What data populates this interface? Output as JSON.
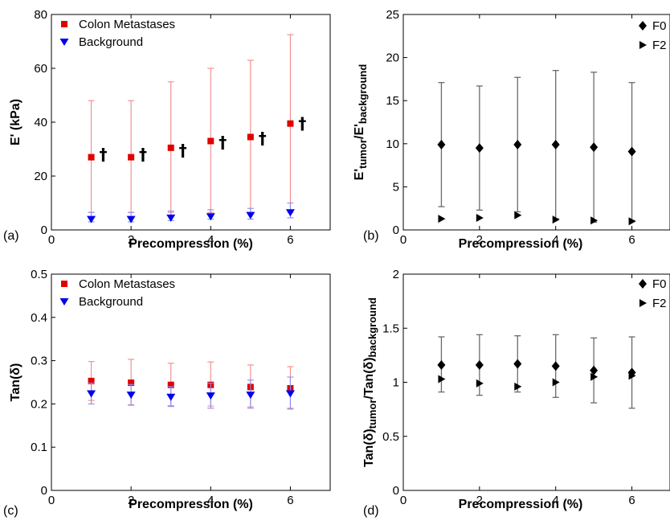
{
  "chart_data": [
    {
      "panel": "(a)",
      "type": "scatter",
      "xlabel": "Precompression (%)",
      "ylabel": "E' (kPa)",
      "xlim": [
        0,
        7
      ],
      "ylim": [
        0,
        80
      ],
      "xticks": [
        0,
        2,
        4,
        6
      ],
      "yticks": [
        0,
        20,
        40,
        60,
        80
      ],
      "legend_position": "top-left",
      "x": [
        1,
        2,
        3,
        4,
        5,
        6
      ],
      "series": [
        {
          "name": "Colon Metastases",
          "color": "#e00000",
          "marker": "square",
          "values": [
            27,
            27,
            30.5,
            33,
            34.5,
            39.5
          ],
          "err_low": [
            6.5,
            6.5,
            6.5,
            6.5,
            6.5,
            6.5
          ],
          "err_high": [
            48,
            48,
            55,
            60,
            63,
            72.5
          ]
        },
        {
          "name": "Background",
          "color": "#0000ee",
          "marker": "triangle-down",
          "values": [
            4,
            4,
            4.5,
            5,
            5.5,
            6.5
          ],
          "err_low": [
            3,
            3,
            3.5,
            4,
            4,
            4.5
          ],
          "err_high": [
            6.5,
            6.5,
            7,
            7.5,
            8,
            10
          ]
        }
      ],
      "annotations": {
        "symbol": "†",
        "x": [
          1.2,
          2.2,
          3.2,
          4.2,
          5.2,
          6.2
        ],
        "y": [
          28,
          28,
          29.5,
          32.5,
          34,
          39.5
        ]
      }
    },
    {
      "panel": "(b)",
      "type": "scatter",
      "xlabel": "Precompression (%)",
      "ylabel": "E'tumor/E'background",
      "ylabel_parts": [
        {
          "text": "E'",
          "sub": false
        },
        {
          "text": "tumor",
          "sub": true
        },
        {
          "text": "/E'",
          "sub": false
        },
        {
          "text": "background",
          "sub": true
        }
      ],
      "xlim": [
        0,
        7
      ],
      "ylim": [
        0,
        25
      ],
      "xticks": [
        0,
        2,
        4,
        6
      ],
      "yticks": [
        0,
        5,
        10,
        15,
        20,
        25
      ],
      "legend_position": "top-right",
      "x": [
        1,
        2,
        3,
        4,
        5,
        6
      ],
      "series": [
        {
          "name": "F0",
          "color": "#000000",
          "marker": "diamond",
          "values": [
            9.9,
            9.5,
            9.9,
            9.9,
            9.6,
            9.1
          ],
          "err_low": [
            2.7,
            2.3,
            2.1,
            1.3,
            0.9,
            1.1
          ],
          "err_high": [
            17.1,
            16.7,
            17.7,
            18.5,
            18.3,
            17.1
          ]
        },
        {
          "name": "F2",
          "color": "#000000",
          "marker": "triangle-right",
          "values": [
            1.3,
            1.4,
            1.7,
            1.2,
            1.1,
            1.0
          ],
          "err_low": [
            1.3,
            1.4,
            1.7,
            1.2,
            1.1,
            1.0
          ],
          "err_high": [
            1.3,
            1.4,
            1.7,
            1.2,
            1.1,
            1.0
          ]
        }
      ]
    },
    {
      "panel": "(c)",
      "type": "scatter",
      "xlabel": "Precompression (%)",
      "ylabel": "Tan(δ)",
      "xlim": [
        0,
        7
      ],
      "ylim": [
        0,
        0.5
      ],
      "xticks": [
        0,
        2,
        4,
        6
      ],
      "yticks": [
        0,
        0.1,
        0.2,
        0.3,
        0.4,
        0.5
      ],
      "legend_position": "top-left",
      "x": [
        1,
        2,
        3,
        4,
        5,
        6
      ],
      "series": [
        {
          "name": "Colon Metastases",
          "color": "#e00000",
          "marker": "square",
          "values": [
            0.253,
            0.249,
            0.244,
            0.244,
            0.239,
            0.236
          ],
          "err_low": [
            0.208,
            0.198,
            0.196,
            0.195,
            0.193,
            0.19
          ],
          "err_high": [
            0.298,
            0.303,
            0.294,
            0.297,
            0.29,
            0.286
          ]
        },
        {
          "name": "Background",
          "color": "#0000ee",
          "marker": "triangle-down",
          "values": [
            0.224,
            0.221,
            0.216,
            0.219,
            0.221,
            0.224
          ],
          "err_low": [
            0.2,
            0.197,
            0.194,
            0.19,
            0.19,
            0.188
          ],
          "err_high": [
            0.248,
            0.245,
            0.24,
            0.248,
            0.255,
            0.262
          ]
        }
      ]
    },
    {
      "panel": "(d)",
      "type": "scatter",
      "xlabel": "Precompression (%)",
      "ylabel": "Tan(δ)tumor/Tan(δ)background",
      "ylabel_parts": [
        {
          "text": "Tan(δ)",
          "sub": false
        },
        {
          "text": "tumor",
          "sub": true
        },
        {
          "text": "/Tan(δ)",
          "sub": false
        },
        {
          "text": "background",
          "sub": true
        }
      ],
      "xlim": [
        0,
        7
      ],
      "ylim": [
        0,
        2
      ],
      "xticks": [
        0,
        2,
        4,
        6
      ],
      "yticks": [
        0,
        0.5,
        1,
        1.5,
        2
      ],
      "legend_position": "top-right",
      "x": [
        1,
        2,
        3,
        4,
        5,
        6
      ],
      "series": [
        {
          "name": "F0",
          "color": "#000000",
          "marker": "diamond",
          "values": [
            1.16,
            1.16,
            1.17,
            1.15,
            1.11,
            1.09
          ],
          "err_low": [
            0.91,
            0.88,
            0.91,
            0.86,
            0.81,
            0.76
          ],
          "err_high": [
            1.42,
            1.44,
            1.43,
            1.44,
            1.41,
            1.42
          ]
        },
        {
          "name": "F2",
          "color": "#000000",
          "marker": "triangle-right",
          "values": [
            1.03,
            0.99,
            0.96,
            1.0,
            1.05,
            1.06
          ],
          "err_low": [
            1.03,
            0.99,
            0.96,
            1.0,
            1.05,
            1.06
          ],
          "err_high": [
            1.03,
            0.99,
            0.96,
            1.0,
            1.05,
            1.06
          ]
        }
      ]
    }
  ]
}
